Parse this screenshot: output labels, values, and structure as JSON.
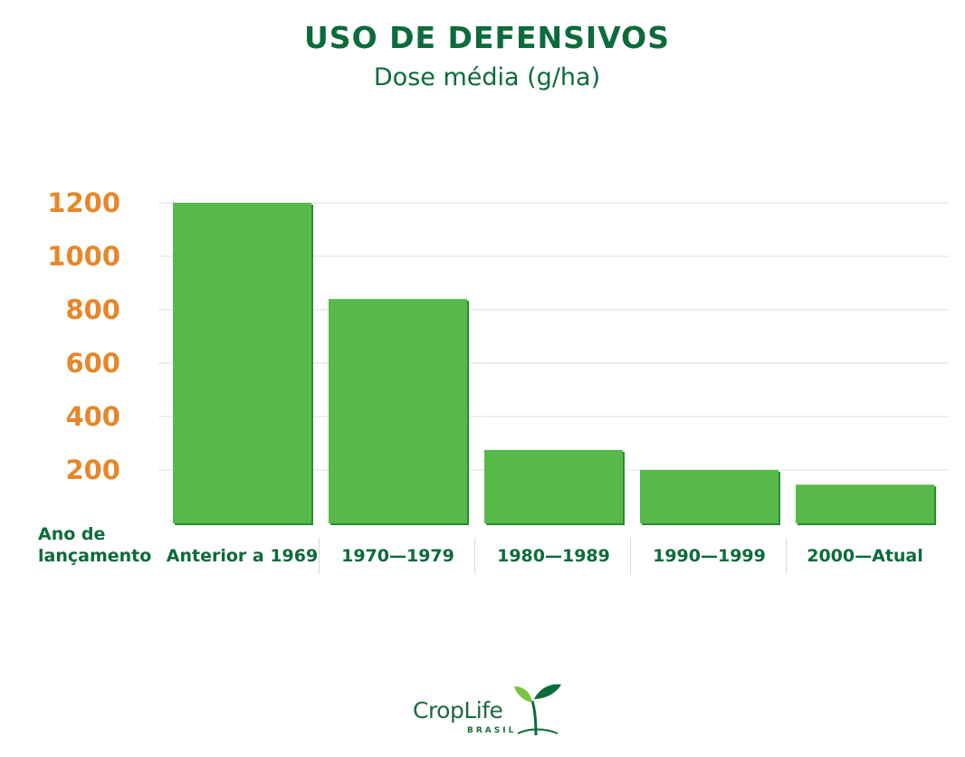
{
  "colors": {
    "title_green": "#0c6b3a",
    "bar_green": "#57b94a",
    "bar_edge": "#2f8a34",
    "ytick_orange": "#e6872a",
    "grid": "#dcdcdc",
    "xlabel_green": "#0c6b3a",
    "logo_gray": "#1e6a3f",
    "logo_light_green": "#79c143"
  },
  "chart_data": {
    "type": "bar",
    "title": "USO DE DEFENSIVOS",
    "subtitle": "Dose média (g/ha)",
    "xlabel": "Ano de lançamento",
    "categories": [
      "Anterior a 1969",
      "1970—1979",
      "1980—1989",
      "1990—1999",
      "2000—Atual"
    ],
    "values": [
      1200,
      840,
      275,
      200,
      145
    ],
    "yticks": [
      "200",
      "400",
      "600",
      "800",
      "1000",
      "1200"
    ],
    "ytick_values": [
      200,
      400,
      600,
      800,
      1000,
      1200
    ],
    "ylim": [
      0,
      1200
    ],
    "grid": true
  },
  "logo": {
    "text_main": "CropLife",
    "text_sub": "BRASIL",
    "icon": "sprout-icon"
  }
}
